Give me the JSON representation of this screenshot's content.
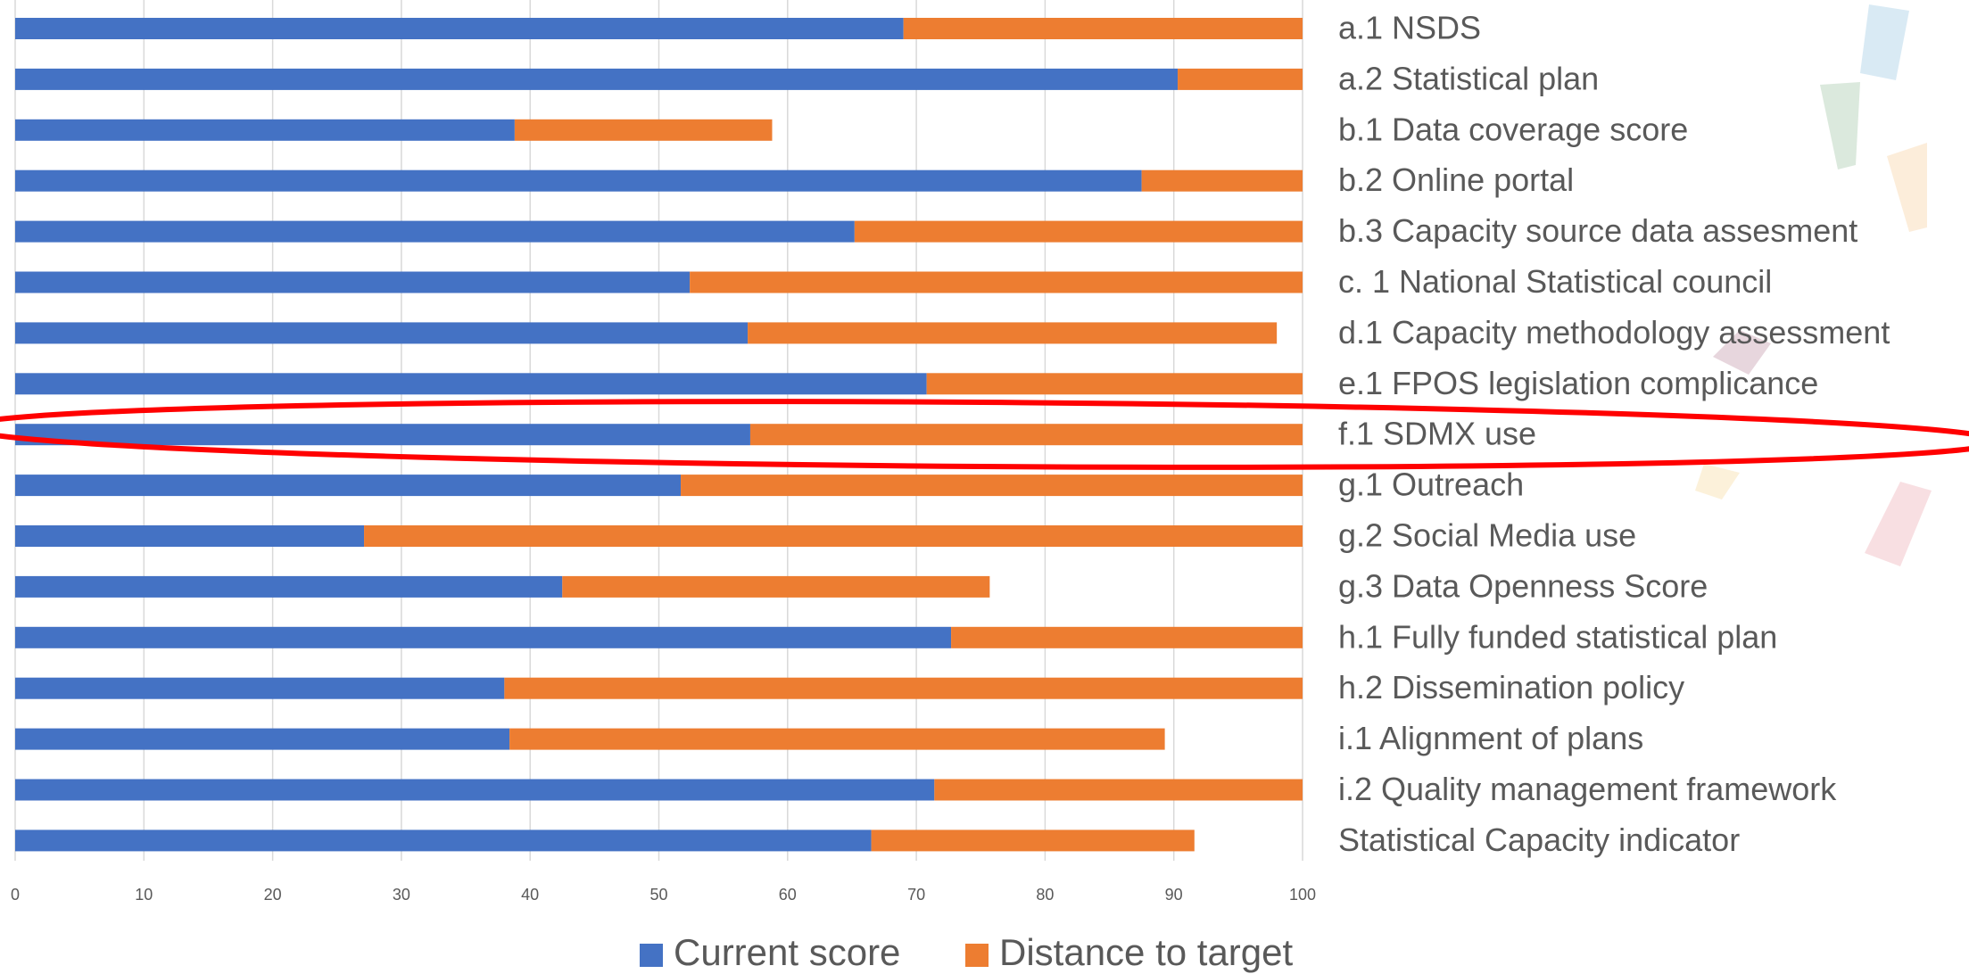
{
  "chart_data": {
    "type": "stacked-bar",
    "orientation": "horizontal",
    "categories": [
      "a.1 NSDS",
      "a.2  Statistical plan",
      "b.1 Data coverage score",
      "b.2 Online portal",
      "b.3 Capacity source data assesment",
      "c. 1 National Statistical council",
      "d.1  Capacity methodology assessment",
      "e.1  FPOS legislation complicance",
      "f.1  SDMX use",
      "g.1 Outreach",
      "g.2 Social Media use",
      "g.3 Data Openness Score",
      "h.1 Fully funded statistical plan",
      "h.2 Dissemination policy",
      "i.1 Alignment of plans",
      "i.2 Quality management framework",
      "Statistical Capacity indicator"
    ],
    "series": [
      {
        "name": "Current score",
        "color": "#4472c4",
        "values": [
          69.0,
          90.3,
          38.8,
          87.5,
          65.2,
          52.4,
          56.9,
          70.8,
          57.1,
          51.7,
          27.1,
          42.5,
          72.7,
          38.0,
          38.4,
          71.4,
          66.5
        ]
      },
      {
        "name": "Distance to target",
        "color": "#ed7d31",
        "values": [
          31.0,
          9.7,
          20.0,
          12.5,
          34.8,
          47.6,
          41.1,
          29.2,
          42.9,
          48.3,
          72.9,
          33.2,
          27.3,
          62.0,
          50.9,
          28.6,
          25.1
        ]
      }
    ],
    "xlim": [
      0,
      100
    ],
    "xticks": [
      0,
      10,
      20,
      30,
      40,
      50,
      60,
      70,
      80,
      90,
      100
    ],
    "grid": true,
    "legend": "bottom"
  }
}
